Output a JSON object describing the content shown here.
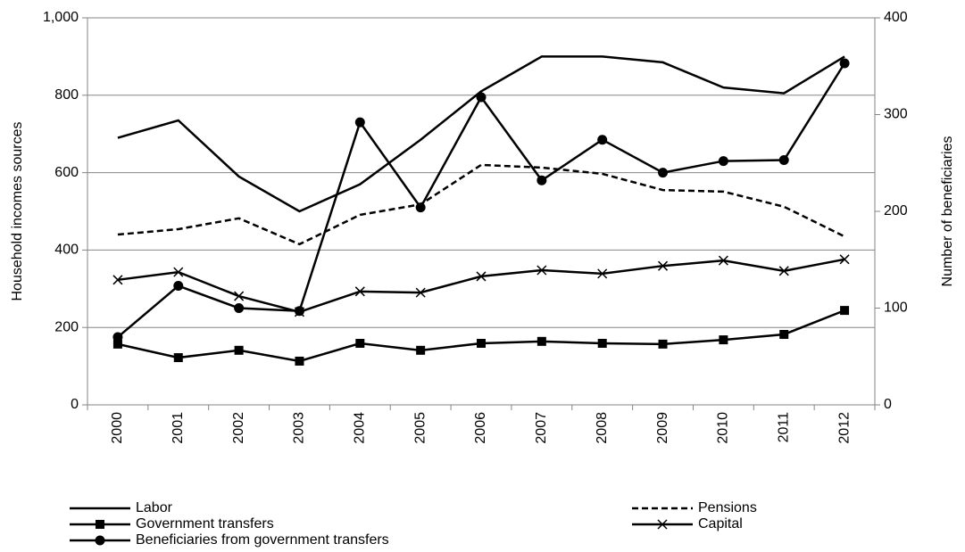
{
  "chart_data": {
    "type": "line",
    "categories": [
      "2000",
      "2001",
      "2002",
      "2003",
      "2004",
      "2005",
      "2006",
      "2007",
      "2008",
      "2009",
      "2010",
      "2011",
      "2012"
    ],
    "ylabel": "Household incomes sources",
    "y2label": "Number of beneficiaries",
    "ylim": [
      0,
      1000
    ],
    "yticks": [
      0,
      200,
      400,
      600,
      800,
      {
        "value": 1000,
        "label": "1,000"
      }
    ],
    "y2lim": [
      0,
      400
    ],
    "y2ticks": [
      0,
      100,
      200,
      300,
      400
    ],
    "grid": true,
    "legend": "bottom",
    "series": [
      {
        "name": "Labor",
        "color": "#000000",
        "style": "solid",
        "marker": "none",
        "values": [
          690,
          735,
          590,
          500,
          570,
          685,
          810,
          900,
          900,
          885,
          820,
          805,
          900
        ]
      },
      {
        "name": "Pensions",
        "color": "#000000",
        "style": "dashed",
        "marker": "none",
        "values": [
          440,
          454,
          482,
          415,
          491,
          518,
          620,
          613,
          597,
          555,
          551,
          512,
          435
        ]
      },
      {
        "name": "Government transfers",
        "color": "#000000",
        "style": "solid",
        "marker": "square",
        "values": [
          157,
          122,
          141,
          113,
          159,
          141,
          159,
          164,
          159,
          157,
          168,
          182,
          244
        ]
      },
      {
        "name": "Capital",
        "color": "#000000",
        "style": "solid",
        "marker": "x",
        "values": [
          323,
          343,
          281,
          240,
          293,
          290,
          332,
          348,
          339,
          359,
          373,
          346,
          376
        ]
      },
      {
        "name": "Beneficiaries from government transfers",
        "color": "#000000",
        "style": "solid",
        "marker": "circle",
        "axis": "y2",
        "values": [
          70,
          123,
          100,
          97,
          292,
          204,
          318,
          232,
          274,
          240,
          252,
          253,
          353
        ]
      }
    ]
  }
}
